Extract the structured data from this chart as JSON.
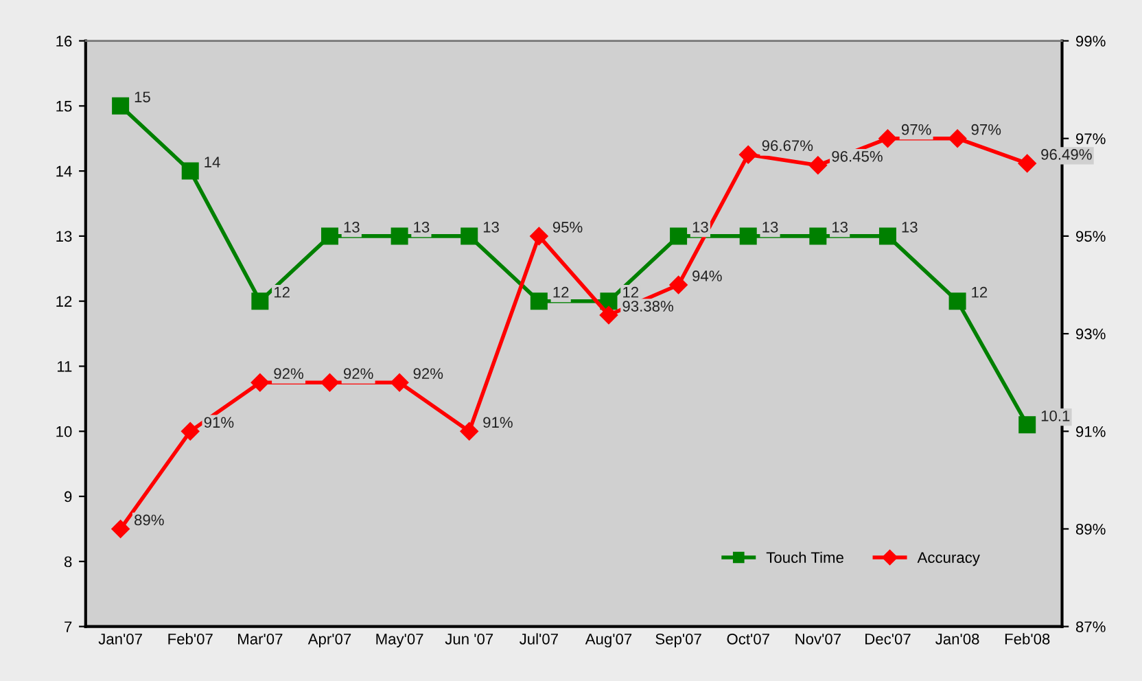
{
  "chart_data": {
    "type": "line",
    "categories": [
      "Jan'07",
      "Feb'07",
      "Mar'07",
      "Apr'07",
      "May'07",
      "Jun '07",
      "Jul'07",
      "Aug'07",
      "Sep'07",
      "Oct'07",
      "Nov'07",
      "Dec'07",
      "Jan'08",
      "Feb'08"
    ],
    "series": [
      {
        "name": "Touch Time",
        "color": "#008000",
        "marker": "square",
        "values": [
          15,
          14,
          12,
          13,
          13,
          13,
          12,
          12,
          13,
          13,
          13,
          13,
          12,
          10.1
        ],
        "value_labels": [
          "15",
          "14",
          "12",
          "13",
          "13",
          "13",
          "12",
          "12",
          "13",
          "13",
          "13",
          "13",
          "12",
          "10.1"
        ]
      },
      {
        "name": "Accuracy",
        "color": "#ff0000",
        "marker": "diamond",
        "axis": "y2",
        "values": [
          89,
          91,
          92,
          92,
          92,
          91,
          95,
          93.38,
          94,
          96.67,
          96.45,
          97,
          97,
          96.49
        ],
        "value_labels": [
          "89%",
          "91%",
          "92%",
          "92%",
          "92%",
          "91%",
          "95%",
          "93.38%",
          "94%",
          "96.67%",
          "96.45%",
          "97%",
          "97%",
          "96.49%"
        ]
      }
    ],
    "ylim": [
      7,
      16
    ],
    "yticks": [
      7,
      8,
      9,
      10,
      11,
      12,
      13,
      14,
      15,
      16
    ],
    "y2lim": [
      87,
      99
    ],
    "y2ticks": [
      {
        "value": 87,
        "label": "87%"
      },
      {
        "value": 89,
        "label": "89%"
      },
      {
        "value": 91,
        "label": "91%"
      },
      {
        "value": 93,
        "label": "93%"
      },
      {
        "value": 95,
        "label": "95%"
      },
      {
        "value": 97,
        "label": "97%"
      },
      {
        "value": 99,
        "label": "99%"
      }
    ],
    "grid": false,
    "legend": "bottom right"
  }
}
